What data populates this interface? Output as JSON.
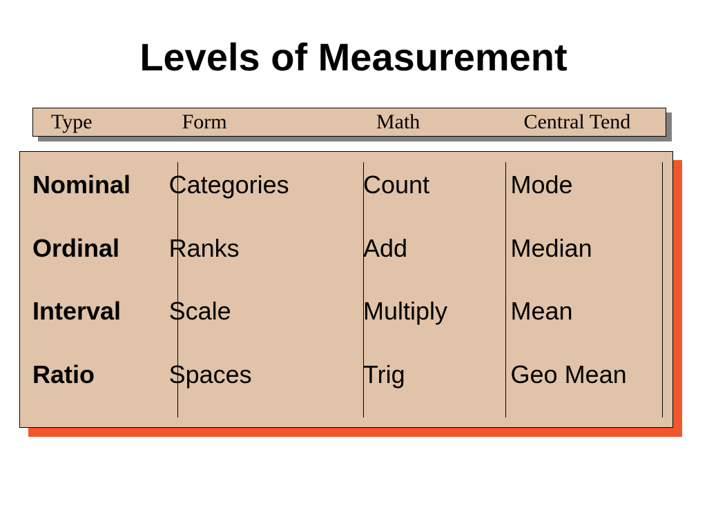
{
  "title": "Levels of Measurement",
  "header": {
    "columns": [
      "Type",
      "Form",
      "Math",
      "Central Tend"
    ],
    "background_color": "#e0c3a8",
    "shadow_color": "#808080",
    "font_family": "Times New Roman",
    "font_size_pt": 22,
    "text_color": "#000000"
  },
  "table": {
    "type": "table",
    "background_color": "#e0c3a8",
    "shadow_color": "#f1562c",
    "border_color": "#000000",
    "divider_color": "#000000",
    "font_size_pt": 27,
    "text_color": "#000000",
    "type_column_font_weight": 900,
    "columns": [
      "Type",
      "Form",
      "Math",
      "Central Tend"
    ],
    "rows": [
      {
        "type": "Nominal",
        "form": "Categories",
        "math": "Count",
        "central": "Mode"
      },
      {
        "type": "Ordinal",
        "form": "Ranks",
        "math": "Add",
        "central": "Median"
      },
      {
        "type": "Interval",
        "form": "Scale",
        "math": "Multiply",
        "central": "Mean"
      },
      {
        "type": "Ratio",
        "form": "Spaces",
        "math": "Trig",
        "central": "Geo Mean"
      }
    ]
  },
  "colors": {
    "slide_background": "#ffffff",
    "title_color": "#000000"
  }
}
